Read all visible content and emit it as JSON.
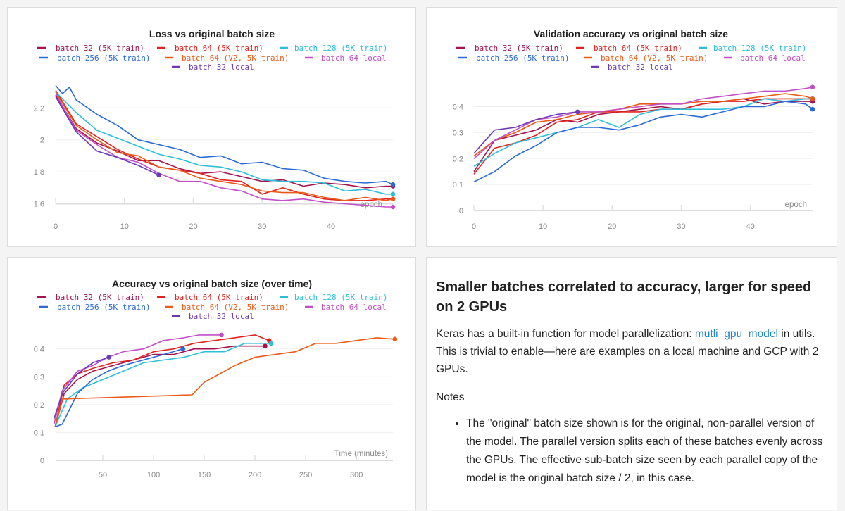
{
  "series_colors": {
    "batch 32 (5K train)": "#a3134f",
    "batch 64 (5K train)": "#e0231f",
    "batch 128 (5K train)": "#2dbfd8",
    "batch 256 (5K train)": "#2b6ad6",
    "batch 64 (V2, 5K train)": "#ea5a16",
    "batch 64 local": "#c34fc8",
    "batch 32 local": "#6b39b6"
  },
  "chart_data": [
    {
      "type": "line",
      "title": "Loss vs original batch size",
      "xlabel": "epoch",
      "ylabel": "",
      "xlim": [
        0,
        49
      ],
      "ylim": [
        1.58,
        2.36
      ],
      "xticks": [
        0,
        10,
        20,
        30,
        40
      ],
      "yticks": [
        1.6,
        1.8,
        2,
        2.2
      ],
      "grid": true,
      "legend": "top",
      "series": [
        {
          "name": "batch 32 (5K train)",
          "x": [
            0,
            3,
            6,
            9,
            12,
            15,
            18,
            21,
            24,
            27,
            30,
            33,
            36,
            39,
            42,
            45,
            48,
            49
          ],
          "y": [
            2.28,
            2.07,
            1.98,
            1.93,
            1.87,
            1.87,
            1.82,
            1.79,
            1.8,
            1.77,
            1.74,
            1.75,
            1.71,
            1.73,
            1.72,
            1.7,
            1.71,
            1.71
          ]
        },
        {
          "name": "batch 64 (5K train)",
          "x": [
            0,
            3,
            6,
            9,
            12,
            15,
            18,
            21,
            24,
            27,
            30,
            33,
            36,
            39,
            42,
            45,
            48,
            49
          ],
          "y": [
            2.31,
            2.1,
            2.02,
            1.94,
            1.88,
            1.83,
            1.81,
            1.79,
            1.75,
            1.74,
            1.66,
            1.7,
            1.66,
            1.63,
            1.62,
            1.62,
            1.63,
            1.63
          ]
        },
        {
          "name": "batch 128 (5K train)",
          "x": [
            0,
            3,
            6,
            9,
            12,
            15,
            18,
            21,
            24,
            27,
            30,
            33,
            36,
            39,
            42,
            45,
            48,
            49
          ],
          "y": [
            2.3,
            2.17,
            2.06,
            2.01,
            1.96,
            1.91,
            1.88,
            1.84,
            1.83,
            1.8,
            1.75,
            1.74,
            1.74,
            1.73,
            1.68,
            1.69,
            1.66,
            1.66
          ]
        },
        {
          "name": "batch 256 (5K train)",
          "x": [
            0,
            1,
            2,
            3,
            6,
            9,
            12,
            15,
            18,
            21,
            24,
            27,
            30,
            33,
            36,
            39,
            42,
            45,
            48,
            49
          ],
          "y": [
            2.34,
            2.29,
            2.33,
            2.25,
            2.16,
            2.09,
            2.0,
            1.97,
            1.94,
            1.89,
            1.9,
            1.85,
            1.86,
            1.82,
            1.81,
            1.76,
            1.74,
            1.73,
            1.74,
            1.72
          ]
        },
        {
          "name": "batch 64 (V2, 5K train)",
          "x": [
            0,
            3,
            6,
            9,
            12,
            15,
            18,
            21,
            24,
            27,
            30,
            33,
            36,
            39,
            42,
            45,
            48,
            49
          ],
          "y": [
            2.3,
            2.09,
            2.0,
            1.92,
            1.9,
            1.83,
            1.81,
            1.76,
            1.74,
            1.72,
            1.68,
            1.67,
            1.67,
            1.64,
            1.62,
            1.64,
            1.62,
            1.63
          ]
        },
        {
          "name": "batch 64 local",
          "x": [
            0,
            3,
            6,
            9,
            12,
            15,
            18,
            21,
            24,
            27,
            30,
            33,
            36,
            39,
            42,
            45,
            48,
            49
          ],
          "y": [
            2.29,
            2.06,
            1.97,
            1.89,
            1.86,
            1.79,
            1.74,
            1.74,
            1.7,
            1.68,
            1.63,
            1.62,
            1.63,
            1.61,
            1.6,
            1.59,
            1.58,
            1.58
          ]
        },
        {
          "name": "batch 32 local",
          "x": [
            0,
            3,
            6,
            9,
            12,
            15
          ],
          "y": [
            2.27,
            2.05,
            1.93,
            1.89,
            1.84,
            1.78
          ]
        }
      ]
    },
    {
      "type": "line",
      "title": "Validation accuracy vs original batch size",
      "xlabel": "epoch",
      "ylabel": "",
      "xlim": [
        0,
        49
      ],
      "ylim": [
        0,
        0.48
      ],
      "xticks": [
        0,
        10,
        20,
        30,
        40
      ],
      "yticks": [
        0,
        0.1,
        0.2,
        0.3,
        0.4
      ],
      "grid": true,
      "legend": "top",
      "series": [
        {
          "name": "batch 32 (5K train)",
          "x": [
            0,
            3,
            6,
            9,
            12,
            15,
            18,
            21,
            24,
            27,
            30,
            33,
            36,
            39,
            42,
            45,
            48,
            49
          ],
          "y": [
            0.15,
            0.27,
            0.29,
            0.31,
            0.35,
            0.34,
            0.37,
            0.38,
            0.39,
            0.4,
            0.39,
            0.41,
            0.42,
            0.43,
            0.41,
            0.42,
            0.42,
            0.42
          ]
        },
        {
          "name": "batch 64 (5K train)",
          "x": [
            0,
            3,
            6,
            9,
            12,
            15,
            18,
            21,
            24,
            27,
            30,
            33,
            36,
            39,
            42,
            45,
            48,
            49
          ],
          "y": [
            0.14,
            0.24,
            0.26,
            0.29,
            0.34,
            0.35,
            0.38,
            0.38,
            0.38,
            0.39,
            0.39,
            0.41,
            0.42,
            0.42,
            0.43,
            0.43,
            0.43,
            0.43
          ]
        },
        {
          "name": "batch 128 (5K train)",
          "x": [
            0,
            3,
            6,
            9,
            12,
            15,
            18,
            21,
            24,
            27,
            30,
            33,
            36,
            39,
            42,
            45,
            48,
            49
          ],
          "y": [
            0.17,
            0.22,
            0.26,
            0.28,
            0.3,
            0.32,
            0.35,
            0.32,
            0.37,
            0.39,
            0.39,
            0.39,
            0.39,
            0.4,
            0.43,
            0.42,
            0.43,
            0.43
          ]
        },
        {
          "name": "batch 256 (5K train)",
          "x": [
            0,
            3,
            6,
            9,
            12,
            15,
            18,
            21,
            24,
            27,
            30,
            33,
            36,
            39,
            42,
            45,
            48,
            49
          ],
          "y": [
            0.11,
            0.15,
            0.21,
            0.25,
            0.3,
            0.32,
            0.32,
            0.31,
            0.33,
            0.36,
            0.37,
            0.36,
            0.38,
            0.4,
            0.4,
            0.42,
            0.41,
            0.39
          ]
        },
        {
          "name": "batch 64 (V2, 5K train)",
          "x": [
            0,
            3,
            6,
            9,
            12,
            15,
            18,
            21,
            24,
            27,
            30,
            33,
            36,
            39,
            42,
            45,
            48,
            49
          ],
          "y": [
            0.21,
            0.27,
            0.3,
            0.34,
            0.35,
            0.37,
            0.38,
            0.39,
            0.41,
            0.41,
            0.41,
            0.42,
            0.42,
            0.43,
            0.44,
            0.45,
            0.44,
            0.43
          ]
        },
        {
          "name": "batch 64 local",
          "x": [
            0,
            3,
            6,
            9,
            12,
            15,
            18,
            21,
            24,
            27,
            30,
            33,
            36,
            39,
            42,
            45,
            48,
            49
          ],
          "y": [
            0.2,
            0.27,
            0.31,
            0.35,
            0.36,
            0.38,
            0.38,
            0.39,
            0.4,
            0.41,
            0.41,
            0.43,
            0.44,
            0.45,
            0.46,
            0.46,
            0.47,
            0.475
          ]
        },
        {
          "name": "batch 32 local",
          "x": [
            0,
            3,
            6,
            9,
            12,
            15
          ],
          "y": [
            0.22,
            0.31,
            0.32,
            0.35,
            0.37,
            0.38
          ]
        }
      ]
    },
    {
      "type": "line",
      "title": "Accuracy vs original batch size (over time)",
      "xlabel": "Time (minutes)",
      "ylabel": "",
      "xlim": [
        3.5,
        336
      ],
      "ylim": [
        0,
        0.47
      ],
      "xticks": [
        50,
        100,
        150,
        200,
        250,
        300
      ],
      "yticks": [
        0,
        0.1,
        0.2,
        0.3,
        0.4
      ],
      "grid": true,
      "legend": "top",
      "series": [
        {
          "name": "batch 32 (5K train)",
          "x": [
            3,
            12,
            25,
            40,
            60,
            80,
            100,
            120,
            140,
            160,
            180,
            200,
            210
          ],
          "y": [
            0.12,
            0.24,
            0.29,
            0.32,
            0.34,
            0.36,
            0.38,
            0.38,
            0.4,
            0.4,
            0.41,
            0.41,
            0.41
          ]
        },
        {
          "name": "batch 64 (5K train)",
          "x": [
            3,
            12,
            25,
            40,
            60,
            80,
            100,
            120,
            140,
            160,
            180,
            200,
            214
          ],
          "y": [
            0.12,
            0.27,
            0.31,
            0.33,
            0.35,
            0.36,
            0.39,
            0.4,
            0.42,
            0.43,
            0.44,
            0.45,
            0.43
          ]
        },
        {
          "name": "batch 128 (5K train)",
          "x": [
            3,
            15,
            30,
            50,
            70,
            90,
            110,
            130,
            150,
            170,
            190,
            205,
            216
          ],
          "y": [
            0.12,
            0.22,
            0.26,
            0.29,
            0.32,
            0.35,
            0.36,
            0.37,
            0.39,
            0.39,
            0.42,
            0.42,
            0.42
          ]
        },
        {
          "name": "batch 256 (5K train)",
          "x": [
            3,
            10,
            25,
            40,
            55,
            70,
            90,
            110,
            129
          ],
          "y": [
            0.12,
            0.13,
            0.24,
            0.29,
            0.32,
            0.34,
            0.36,
            0.38,
            0.4
          ]
        },
        {
          "name": "batch 64 (V2, 5K train)",
          "x": [
            3,
            10,
            138,
            150,
            165,
            180,
            200,
            220,
            240,
            260,
            280,
            300,
            320,
            338
          ],
          "y": [
            0.12,
            0.22,
            0.235,
            0.28,
            0.31,
            0.34,
            0.37,
            0.38,
            0.39,
            0.42,
            0.42,
            0.43,
            0.44,
            0.435
          ]
        },
        {
          "name": "batch 64 local",
          "x": [
            2,
            10,
            25,
            40,
            55,
            70,
            90,
            110,
            130,
            145,
            167
          ],
          "y": [
            0.13,
            0.25,
            0.32,
            0.34,
            0.37,
            0.39,
            0.4,
            0.43,
            0.44,
            0.45,
            0.45
          ]
        },
        {
          "name": "batch 32 local",
          "x": [
            2,
            10,
            25,
            40,
            56
          ],
          "y": [
            0.15,
            0.24,
            0.31,
            0.35,
            0.37
          ]
        }
      ]
    }
  ],
  "text_panel": {
    "heading": "Smaller batches correlated to accuracy, larger for speed on 2 GPUs",
    "intro_before_link": "Keras has a built-in function for model parallelization: ",
    "link_text": "mutli_gpu_model",
    "intro_after_link": " in utils. This is trivial to enable—here are examples on a local machine and GCP with 2 GPUs.",
    "notes_heading": "Notes",
    "notes": [
      "The \"original\" batch size shown is for the original, non-parallel version of the model. The parallel version splits each of these batches evenly across the GPUs. The effective sub-batch size seen by each parallel copy of the model is the original batch size / 2, in this case."
    ]
  }
}
